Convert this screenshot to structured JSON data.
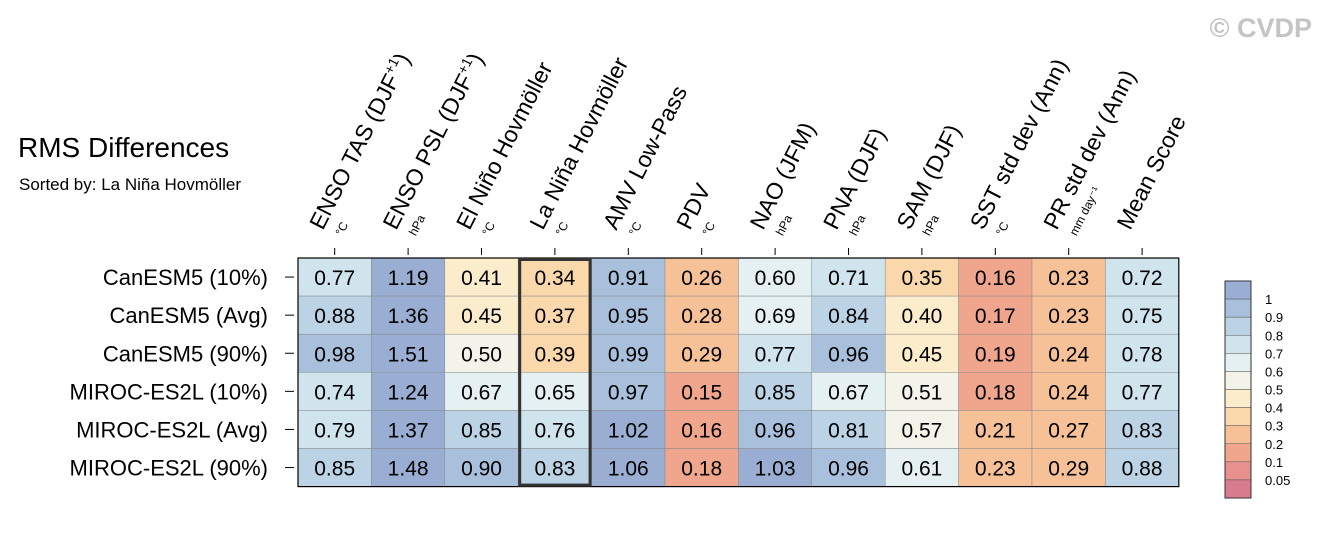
{
  "watermark": "© CVDP",
  "chart_data": {
    "type": "heatmap",
    "title": "RMS Differences",
    "subtitle": "Sorted by: La Niña Hovmöller",
    "columns": [
      {
        "name": "ENSO TAS (DJF",
        "sup": "+1",
        "close": ")",
        "unit": "°C"
      },
      {
        "name": "ENSO PSL (DJF",
        "sup": "+1",
        "close": ")",
        "unit": "hPa"
      },
      {
        "name": "El Niño Hovmöller",
        "sup": "",
        "close": "",
        "unit": "°C"
      },
      {
        "name": "La Niña Hovmöller",
        "sup": "",
        "close": "",
        "unit": "°C"
      },
      {
        "name": "AMV Low-Pass",
        "sup": "",
        "close": "",
        "unit": "°C"
      },
      {
        "name": "PDV",
        "sup": "",
        "close": "",
        "unit": "°C"
      },
      {
        "name": "NAO (JFM)",
        "sup": "",
        "close": "",
        "unit": "hPa"
      },
      {
        "name": "PNA (DJF)",
        "sup": "",
        "close": "",
        "unit": "hPa"
      },
      {
        "name": "SAM (DJF)",
        "sup": "",
        "close": "",
        "unit": "hPa"
      },
      {
        "name": "SST std dev (Ann)",
        "sup": "",
        "close": "",
        "unit": "°C"
      },
      {
        "name": "PR std dev (Ann)",
        "sup": "",
        "close": "",
        "unit": "mm day⁻¹"
      },
      {
        "name": "Mean Score",
        "sup": "",
        "close": "",
        "unit": ""
      }
    ],
    "rows": [
      "CanESM5 (10%)",
      "CanESM5 (Avg)",
      "CanESM5 (90%)",
      "MIROC-ES2L (10%)",
      "MIROC-ES2L (Avg)",
      "MIROC-ES2L (90%)"
    ],
    "values": [
      [
        "0.77",
        "1.19",
        "0.41",
        "0.34",
        "0.91",
        "0.26",
        "0.60",
        "0.71",
        "0.35",
        "0.16",
        "0.23",
        "0.72"
      ],
      [
        "0.88",
        "1.36",
        "0.45",
        "0.37",
        "0.95",
        "0.28",
        "0.69",
        "0.84",
        "0.40",
        "0.17",
        "0.23",
        "0.75"
      ],
      [
        "0.98",
        "1.51",
        "0.50",
        "0.39",
        "0.99",
        "0.29",
        "0.77",
        "0.96",
        "0.45",
        "0.19",
        "0.24",
        "0.78"
      ],
      [
        "0.74",
        "1.24",
        "0.67",
        "0.65",
        "0.97",
        "0.15",
        "0.85",
        "0.67",
        "0.51",
        "0.18",
        "0.24",
        "0.77"
      ],
      [
        "0.79",
        "1.37",
        "0.85",
        "0.76",
        "1.02",
        "0.16",
        "0.96",
        "0.81",
        "0.57",
        "0.21",
        "0.27",
        "0.83"
      ],
      [
        "0.85",
        "1.48",
        "0.90",
        "0.83",
        "1.06",
        "0.18",
        "1.03",
        "0.96",
        "0.61",
        "0.23",
        "0.29",
        "0.88"
      ]
    ],
    "highlighted_column": "La Niña Hovmöller",
    "colorbar": {
      "labels": [
        "1",
        "0.9",
        "0.8",
        "0.7",
        "0.6",
        "0.5",
        "0.4",
        "0.3",
        "0.2",
        "0.1",
        "0.05"
      ],
      "colors": [
        "#9aaed3",
        "#a9c0dc",
        "#bcd3e5",
        "#d0e4ed",
        "#e4f0f1",
        "#f3f3ea",
        "#fbeccb",
        "#fbd8ab",
        "#f7c198",
        "#f0a68d",
        "#e8908d",
        "#d97b8f"
      ]
    }
  }
}
